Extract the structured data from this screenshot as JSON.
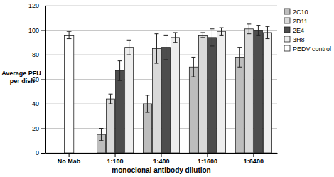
{
  "chart_data": {
    "type": "bar",
    "y_label": "Average PFU per dish",
    "x_label": "monoclonal antibody dilution",
    "categories": [
      "No Mab",
      "1:100",
      "1:400",
      "1:1600",
      "1:6400"
    ],
    "series": [
      {
        "name": "2C10",
        "color": "#bdbdbd",
        "values": [
          null,
          15,
          40,
          70,
          78
        ],
        "errors": [
          null,
          5,
          7,
          8,
          8
        ]
      },
      {
        "name": "2D11",
        "color": "#d9d9d9",
        "values": [
          null,
          44,
          85,
          96,
          101
        ],
        "errors": [
          null,
          4,
          12,
          2,
          4
        ]
      },
      {
        "name": "2E4",
        "color": "#4d4d4d",
        "values": [
          null,
          67,
          86,
          94,
          100
        ],
        "errors": [
          null,
          8,
          10,
          7,
          4
        ]
      },
      {
        "name": "3H8",
        "color": "#eeeeee",
        "values": [
          null,
          86,
          94,
          99,
          98
        ],
        "errors": [
          null,
          6,
          4,
          3,
          5
        ]
      },
      {
        "name": "PEDV control",
        "color": "#ffffff",
        "values": [
          96,
          null,
          null,
          null,
          null
        ],
        "errors": [
          3,
          null,
          null,
          null,
          null
        ]
      }
    ],
    "ylim": [
      0,
      120
    ],
    "yticks": [
      0,
      20,
      40,
      60,
      80,
      100,
      120
    ],
    "grid": true,
    "legend": "right"
  }
}
